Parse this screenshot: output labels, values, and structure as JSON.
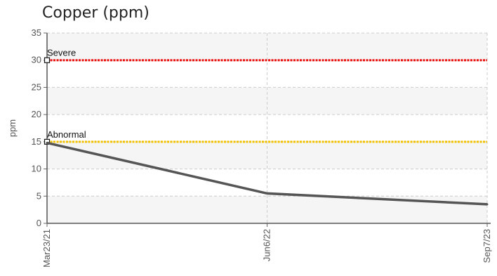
{
  "chart_data": {
    "type": "line",
    "title": "Copper (ppm)",
    "ylabel": "ppm",
    "xlabel": "",
    "ylim": [
      0,
      35
    ],
    "yticks": [
      0,
      5,
      10,
      15,
      20,
      25,
      30,
      35
    ],
    "categories": [
      "Mar23/21",
      "Jun6/22",
      "Sep7/23"
    ],
    "series": [
      {
        "values": [
          14.8,
          5.5,
          3.5
        ],
        "color": "#555555"
      }
    ],
    "thresholds": [
      {
        "label": "Severe",
        "value": 30,
        "color": "#ee1111"
      },
      {
        "label": "Abnormal",
        "value": 15,
        "color": "#f2c200"
      }
    ],
    "grid": true,
    "band_fill": "#f5f5f5"
  }
}
